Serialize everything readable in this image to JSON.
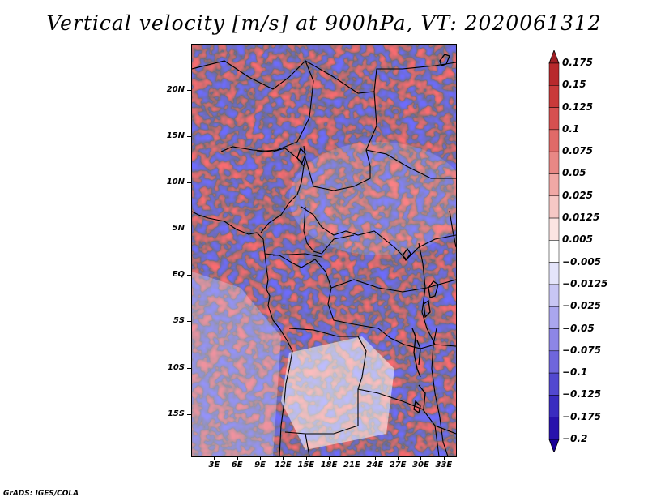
{
  "title": "Vertical velocity [m/s] at 900hPa, VT: 2020061312",
  "credit": "GrADS: IGES/COLA",
  "lat_labels": [
    "20N",
    "15N",
    "10N",
    "5N",
    "EQ",
    "5S",
    "10S",
    "15S"
  ],
  "lat_values": [
    20,
    15,
    10,
    5,
    0,
    -5,
    -10,
    -15
  ],
  "lon_labels": [
    "3E",
    "6E",
    "9E",
    "12E",
    "15E",
    "18E",
    "21E",
    "24E",
    "27E",
    "30E",
    "33E"
  ],
  "lon_values": [
    3,
    6,
    9,
    12,
    15,
    18,
    21,
    24,
    27,
    30,
    33
  ],
  "map_extent": {
    "lon_min": 0,
    "lon_max": 34.5,
    "lat_min": -19.5,
    "lat_max": 25
  },
  "colorbar": {
    "labels": [
      "0.175",
      "0.15",
      "0.125",
      "0.1",
      "0.075",
      "0.05",
      "0.025",
      "0.0125",
      "0.005",
      "−0.005",
      "−0.0125",
      "−0.025",
      "−0.05",
      "−0.075",
      "−0.1",
      "−0.125",
      "−0.175",
      "−0.2"
    ],
    "colors": [
      "#a01f25",
      "#b8292c",
      "#c93a3a",
      "#d65050",
      "#e06a68",
      "#e88885",
      "#f0a8a5",
      "#f6c8c5",
      "#fbe4e2",
      "#ffffff",
      "#e4e4fa",
      "#c8c6f4",
      "#aaa6ee",
      "#8d86e6",
      "#6f66dc",
      "#5248d0",
      "#3a2cc0",
      "#2812ac",
      "#1a0098"
    ]
  }
}
